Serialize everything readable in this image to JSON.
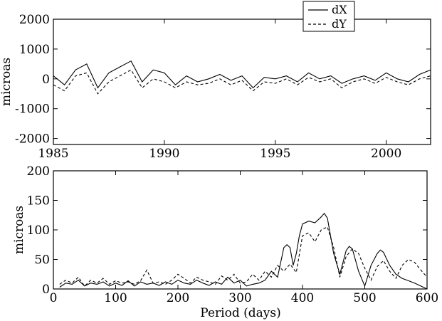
{
  "chart_data": [
    {
      "type": "line",
      "title": "",
      "xlabel": "",
      "ylabel": "microas",
      "xlim": [
        1985,
        2002
      ],
      "ylim": [
        -2200,
        2000
      ],
      "xticks": [
        1985,
        1990,
        1995,
        2000
      ],
      "yticks": [
        -2000,
        -1000,
        0,
        1000,
        2000
      ],
      "tick_labels_x": [
        "1985",
        "1990",
        "1995",
        "2000"
      ],
      "tick_labels_y": [
        "-2000",
        "-1000",
        "0",
        "1000",
        "2000"
      ],
      "legend": {
        "placement": "top-right, above plot",
        "entries": [
          {
            "label": "dX",
            "style": "solid"
          },
          {
            "label": "dY",
            "style": "dashed"
          }
        ]
      },
      "series": [
        {
          "name": "dX",
          "style": "solid",
          "x": [
            1985.0,
            1985.5,
            1986.0,
            1986.5,
            1987.0,
            1987.5,
            1988.0,
            1988.5,
            1989.0,
            1989.5,
            1990.0,
            1990.5,
            1991.0,
            1991.5,
            1992.0,
            1992.5,
            1993.0,
            1993.5,
            1994.0,
            1994.5,
            1995.0,
            1995.5,
            1996.0,
            1996.5,
            1997.0,
            1997.5,
            1998.0,
            1998.5,
            1999.0,
            1999.5,
            2000.0,
            2000.5,
            2001.0,
            2001.5,
            2002.0
          ],
          "y": [
            100,
            -200,
            300,
            500,
            -300,
            200,
            400,
            600,
            -100,
            300,
            200,
            -200,
            100,
            -100,
            0,
            150,
            -50,
            100,
            -300,
            50,
            0,
            100,
            -100,
            200,
            0,
            100,
            -150,
            0,
            100,
            -50,
            200,
            0,
            -100,
            150,
            300
          ]
        },
        {
          "name": "dY",
          "style": "dashed",
          "x": [
            1985.0,
            1985.5,
            1986.0,
            1986.5,
            1987.0,
            1987.5,
            1988.0,
            1988.5,
            1989.0,
            1989.5,
            1990.0,
            1990.5,
            1991.0,
            1991.5,
            1992.0,
            1992.5,
            1993.0,
            1993.5,
            1994.0,
            1994.5,
            1995.0,
            1995.5,
            1996.0,
            1996.5,
            1997.0,
            1997.5,
            1998.0,
            1998.5,
            1999.0,
            1999.5,
            2000.0,
            2000.5,
            2001.0,
            2001.5,
            2002.0
          ],
          "y": [
            -200,
            -400,
            100,
            200,
            -500,
            -100,
            100,
            300,
            -300,
            0,
            -100,
            -300,
            -100,
            -200,
            -150,
            0,
            -200,
            -50,
            -400,
            -100,
            -150,
            0,
            -200,
            50,
            -100,
            0,
            -300,
            -100,
            0,
            -150,
            50,
            -100,
            -200,
            0,
            100
          ]
        }
      ]
    },
    {
      "type": "line",
      "title": "",
      "xlabel": "Period (days)",
      "ylabel": "microas",
      "xlim": [
        0,
        600
      ],
      "ylim": [
        0,
        200
      ],
      "xticks": [
        0,
        100,
        200,
        300,
        400,
        500,
        600
      ],
      "yticks": [
        0,
        50,
        100,
        150,
        200
      ],
      "tick_labels_x": [
        "0",
        "100",
        "200",
        "300",
        "400",
        "500",
        "600"
      ],
      "tick_labels_y": [
        "0",
        "50",
        "100",
        "150",
        "200"
      ],
      "series": [
        {
          "name": "dX",
          "style": "solid",
          "x": [
            10,
            20,
            30,
            40,
            50,
            60,
            70,
            80,
            90,
            100,
            110,
            120,
            130,
            140,
            150,
            160,
            170,
            180,
            190,
            200,
            210,
            220,
            230,
            240,
            250,
            260,
            270,
            280,
            290,
            300,
            310,
            320,
            330,
            340,
            350,
            360,
            370,
            375,
            380,
            385,
            390,
            395,
            400,
            410,
            420,
            430,
            435,
            440,
            450,
            460,
            470,
            475,
            480,
            490,
            500,
            510,
            520,
            525,
            530,
            540,
            550,
            560,
            570,
            580,
            590,
            600
          ],
          "y": [
            3,
            10,
            8,
            15,
            5,
            10,
            8,
            12,
            5,
            10,
            6,
            14,
            5,
            12,
            8,
            10,
            6,
            12,
            8,
            15,
            10,
            8,
            15,
            10,
            6,
            12,
            8,
            20,
            10,
            15,
            5,
            8,
            10,
            15,
            30,
            20,
            70,
            75,
            70,
            40,
            60,
            90,
            110,
            115,
            112,
            122,
            128,
            120,
            60,
            25,
            65,
            72,
            68,
            30,
            5,
            40,
            60,
            66,
            62,
            40,
            25,
            18,
            14,
            10,
            5,
            0
          ]
        },
        {
          "name": "dY",
          "style": "dashed",
          "x": [
            10,
            20,
            30,
            40,
            50,
            60,
            70,
            80,
            90,
            100,
            110,
            120,
            130,
            140,
            150,
            160,
            170,
            180,
            190,
            200,
            210,
            220,
            230,
            240,
            250,
            260,
            270,
            280,
            290,
            300,
            310,
            320,
            330,
            340,
            350,
            360,
            370,
            380,
            390,
            400,
            410,
            420,
            430,
            440,
            450,
            460,
            470,
            480,
            490,
            500,
            510,
            520,
            530,
            540,
            550,
            560,
            570,
            580,
            590,
            600
          ],
          "y": [
            8,
            15,
            10,
            20,
            5,
            15,
            10,
            18,
            8,
            14,
            10,
            12,
            8,
            14,
            32,
            10,
            12,
            8,
            15,
            25,
            18,
            10,
            20,
            15,
            12,
            8,
            22,
            15,
            25,
            10,
            12,
            25,
            15,
            30,
            20,
            40,
            30,
            42,
            28,
            90,
            95,
            80,
            100,
            105,
            70,
            20,
            55,
            68,
            60,
            35,
            15,
            38,
            48,
            30,
            18,
            40,
            50,
            45,
            32,
            20
          ]
        }
      ]
    }
  ]
}
